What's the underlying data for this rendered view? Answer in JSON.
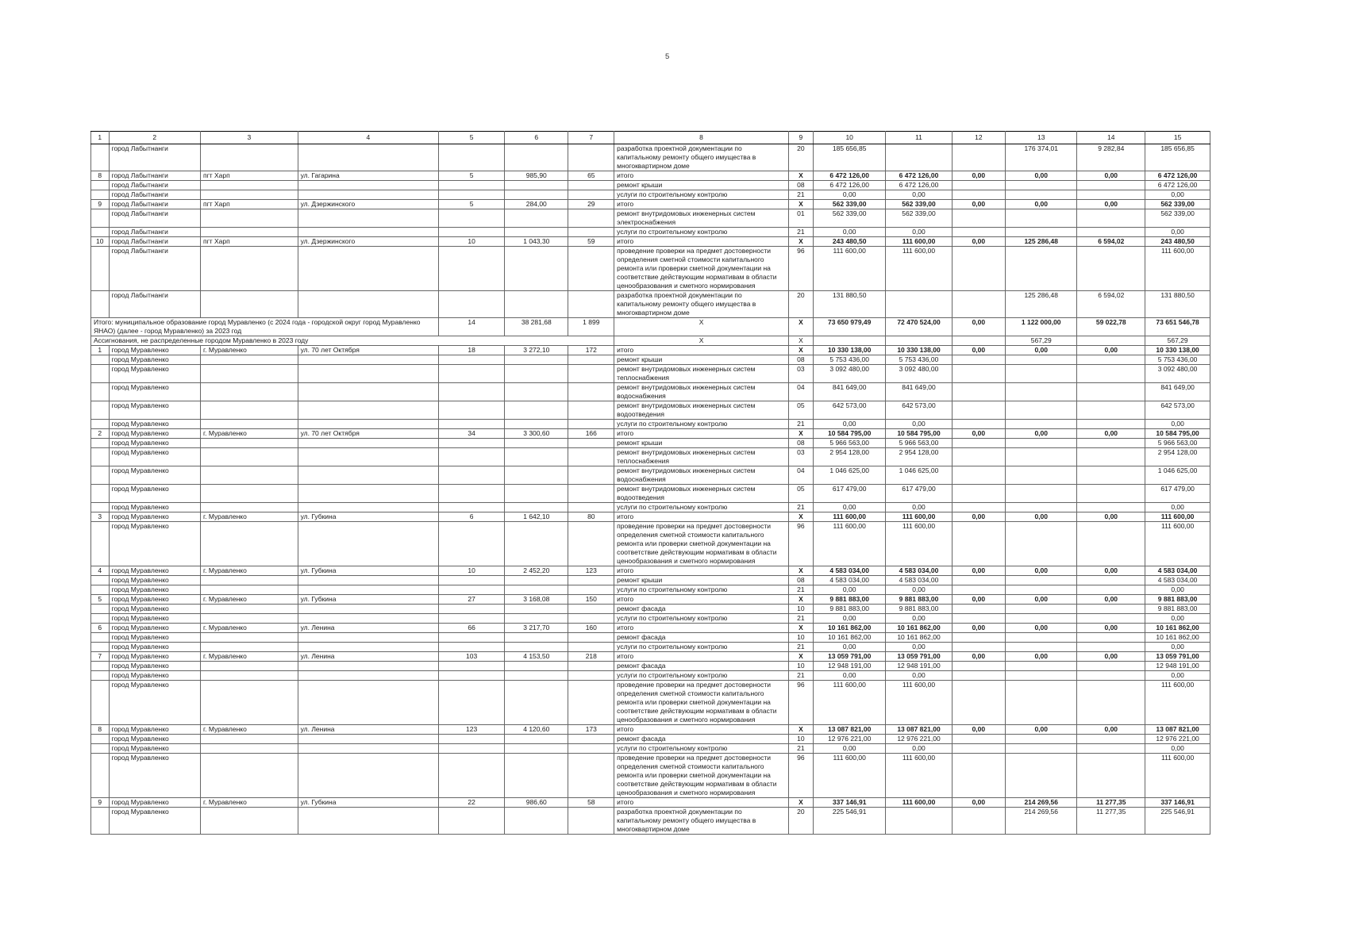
{
  "page": {
    "number": "5"
  },
  "colors": {
    "background": "#ffffff",
    "grid": "#666666",
    "grid_strong": "#000000",
    "text": "#1a1a1a"
  },
  "table": {
    "header": [
      "1",
      "2",
      "3",
      "4",
      "5",
      "6",
      "7",
      "8",
      "9",
      "10",
      "11",
      "12",
      "13",
      "14",
      "15"
    ],
    "rows": [
      {
        "c": [
          "",
          "город Лабытнанги",
          "",
          "",
          "",
          "",
          "",
          "разработка проектной документации по капитальному ремонту общего имущества в многоквартирном доме",
          "20",
          "185 656,85",
          "",
          "",
          "176 374,01",
          "9 282,84",
          "185 656,85"
        ]
      },
      {
        "t": 1,
        "b": 1,
        "c": [
          "8",
          "город Лабытнанги",
          "пгт Харп",
          "ул. Гагарина",
          "5",
          "985,90",
          "65",
          "итого",
          "X",
          "6 472 126,00",
          "6 472 126,00",
          "0,00",
          "0,00",
          "0,00",
          "6 472 126,00"
        ]
      },
      {
        "c": [
          "",
          "город Лабытнанги",
          "",
          "",
          "",
          "",
          "",
          "ремонт крыши",
          "08",
          "6 472 126,00",
          "6 472 126,00",
          "",
          "",
          "",
          "6 472 126,00"
        ]
      },
      {
        "c": [
          "",
          "город Лабытнанги",
          "",
          "",
          "",
          "",
          "",
          "услуги по строительному контролю",
          "21",
          "0,00",
          "0,00",
          "",
          "",
          "",
          "0,00"
        ]
      },
      {
        "t": 1,
        "b": 1,
        "c": [
          "9",
          "город Лабытнанги",
          "пгт Харп",
          "ул. Дзержинского",
          "5",
          "284,00",
          "29",
          "итого",
          "X",
          "562 339,00",
          "562 339,00",
          "0,00",
          "0,00",
          "0,00",
          "562 339,00"
        ]
      },
      {
        "c": [
          "",
          "город Лабытнанги",
          "",
          "",
          "",
          "",
          "",
          "ремонт внутридомовых инженерных систем электроснабжения",
          "01",
          "562 339,00",
          "562 339,00",
          "",
          "",
          "",
          "562 339,00"
        ]
      },
      {
        "c": [
          "",
          "город Лабытнанги",
          "",
          "",
          "",
          "",
          "",
          "услуги по строительному контролю",
          "21",
          "0,00",
          "0,00",
          "",
          "",
          "",
          "0,00"
        ]
      },
      {
        "t": 1,
        "b": 1,
        "c": [
          "10",
          "город Лабытнанги",
          "пгт Харп",
          "ул. Дзержинского",
          "10",
          "1 043,30",
          "59",
          "итого",
          "X",
          "243 480,50",
          "111 600,00",
          "0,00",
          "125 286,48",
          "6 594,02",
          "243 480,50"
        ]
      },
      {
        "c": [
          "",
          "город Лабытнанги",
          "",
          "",
          "",
          "",
          "",
          "проведение проверки на предмет достоверности определения сметной стоимости капитального ремонта или проверки сметной документации на соответствие действующим нормативам в области ценообразования и сметного нормирования",
          "96",
          "111 600,00",
          "111 600,00",
          "",
          "",
          "",
          "111 600,00"
        ]
      },
      {
        "c": [
          "",
          "город Лабытнанги",
          "",
          "",
          "",
          "",
          "",
          "разработка проектной документации по капитальному ремонту общего имущества в многоквартирном доме",
          "20",
          "131 880,50",
          "",
          "",
          "125 286,48",
          "6 594,02",
          "131 880,50"
        ]
      },
      {
        "t": 1,
        "b": 1,
        "c": [
          [
            "Итого: муниципальное образование город Муравленко (с 2024 года - городской округ город Муравленко ЯНАО) (далее - город Муравленко) за 2023 год",
            4
          ],
          "14",
          "38 281,68",
          "1 899",
          "X",
          "X",
          "73 650 979,49",
          "72 470 524,00",
          "0,00",
          "1 122 000,00",
          "59 022,78",
          "73 651 546,78"
        ]
      },
      {
        "c": [
          [
            "Ассигнования, не распределенные городом Муравленко в 2023 году",
            7
          ],
          "X",
          "X",
          "",
          "",
          "",
          "567,29",
          "",
          "567,29"
        ]
      },
      {
        "t": 1,
        "b": 1,
        "c": [
          "1",
          "город Муравленко",
          "г. Муравленко",
          "ул. 70 лет Октября",
          "18",
          "3 272,10",
          "172",
          "итого",
          "X",
          "10 330 138,00",
          "10 330 138,00",
          "0,00",
          "0,00",
          "0,00",
          "10 330 138,00"
        ]
      },
      {
        "c": [
          "",
          "город Муравленко",
          "",
          "",
          "",
          "",
          "",
          "ремонт крыши",
          "08",
          "5 753 436,00",
          "5 753 436,00",
          "",
          "",
          "",
          "5 753 436,00"
        ]
      },
      {
        "c": [
          "",
          "город Муравленко",
          "",
          "",
          "",
          "",
          "",
          "ремонт внутридомовых инженерных систем теплоснабжения",
          "03",
          "3 092 480,00",
          "3 092 480,00",
          "",
          "",
          "",
          "3 092 480,00"
        ]
      },
      {
        "c": [
          "",
          "город Муравленко",
          "",
          "",
          "",
          "",
          "",
          "ремонт внутридомовых инженерных систем водоснабжения",
          "04",
          "841 649,00",
          "841 649,00",
          "",
          "",
          "",
          "841 649,00"
        ]
      },
      {
        "c": [
          "",
          "город Муравленко",
          "",
          "",
          "",
          "",
          "",
          "ремонт внутридомовых инженерных систем водоотведения",
          "05",
          "642 573,00",
          "642 573,00",
          "",
          "",
          "",
          "642 573,00"
        ]
      },
      {
        "c": [
          "",
          "город Муравленко",
          "",
          "",
          "",
          "",
          "",
          "услуги по строительному контролю",
          "21",
          "0,00",
          "0,00",
          "",
          "",
          "",
          "0,00"
        ]
      },
      {
        "t": 1,
        "b": 1,
        "c": [
          "2",
          "город Муравленко",
          "г. Муравленко",
          "ул. 70 лет Октября",
          "34",
          "3 300,60",
          "166",
          "итого",
          "X",
          "10 584 795,00",
          "10 584 795,00",
          "0,00",
          "0,00",
          "0,00",
          "10 584 795,00"
        ]
      },
      {
        "c": [
          "",
          "город Муравленко",
          "",
          "",
          "",
          "",
          "",
          "ремонт крыши",
          "08",
          "5 966 563,00",
          "5 966 563,00",
          "",
          "",
          "",
          "5 966 563,00"
        ]
      },
      {
        "c": [
          "",
          "город Муравленко",
          "",
          "",
          "",
          "",
          "",
          "ремонт внутридомовых инженерных систем теплоснабжения",
          "03",
          "2 954 128,00",
          "2 954 128,00",
          "",
          "",
          "",
          "2 954 128,00"
        ]
      },
      {
        "c": [
          "",
          "город Муравленко",
          "",
          "",
          "",
          "",
          "",
          "ремонт внутридомовых инженерных систем водоснабжения",
          "04",
          "1 046 625,00",
          "1 046 625,00",
          "",
          "",
          "",
          "1 046 625,00"
        ]
      },
      {
        "c": [
          "",
          "город Муравленко",
          "",
          "",
          "",
          "",
          "",
          "ремонт внутридомовых инженерных систем водоотведения",
          "05",
          "617 479,00",
          "617 479,00",
          "",
          "",
          "",
          "617 479,00"
        ]
      },
      {
        "c": [
          "",
          "город Муравленко",
          "",
          "",
          "",
          "",
          "",
          "услуги по строительному контролю",
          "21",
          "0,00",
          "0,00",
          "",
          "",
          "",
          "0,00"
        ]
      },
      {
        "t": 1,
        "b": 1,
        "c": [
          "3",
          "город Муравленко",
          "г. Муравленко",
          "ул. Губкина",
          "6",
          "1 642,10",
          "80",
          "итого",
          "X",
          "111 600,00",
          "111 600,00",
          "0,00",
          "0,00",
          "0,00",
          "111 600,00"
        ]
      },
      {
        "c": [
          "",
          "город Муравленко",
          "",
          "",
          "",
          "",
          "",
          "проведение проверки на предмет достоверности определения сметной стоимости капитального ремонта или проверки сметной документации на соответствие действующим нормативам в области ценообразования и сметного нормирования",
          "96",
          "111 600,00",
          "111 600,00",
          "",
          "",
          "",
          "111 600,00"
        ]
      },
      {
        "t": 1,
        "b": 1,
        "c": [
          "4",
          "город Муравленко",
          "г. Муравленко",
          "ул. Губкина",
          "10",
          "2 452,20",
          "123",
          "итого",
          "X",
          "4 583 034,00",
          "4 583 034,00",
          "0,00",
          "0,00",
          "0,00",
          "4 583 034,00"
        ]
      },
      {
        "c": [
          "",
          "город Муравленко",
          "",
          "",
          "",
          "",
          "",
          "ремонт крыши",
          "08",
          "4 583 034,00",
          "4 583 034,00",
          "",
          "",
          "",
          "4 583 034,00"
        ]
      },
      {
        "c": [
          "",
          "город Муравленко",
          "",
          "",
          "",
          "",
          "",
          "услуги по строительному контролю",
          "21",
          "0,00",
          "0,00",
          "",
          "",
          "",
          "0,00"
        ]
      },
      {
        "t": 1,
        "b": 1,
        "c": [
          "5",
          "город Муравленко",
          "г. Муравленко",
          "ул. Губкина",
          "27",
          "3 168,08",
          "150",
          "итого",
          "X",
          "9 881 883,00",
          "9 881 883,00",
          "0,00",
          "0,00",
          "0,00",
          "9 881 883,00"
        ]
      },
      {
        "c": [
          "",
          "город Муравленко",
          "",
          "",
          "",
          "",
          "",
          "ремонт фасада",
          "10",
          "9 881 883,00",
          "9 881 883,00",
          "",
          "",
          "",
          "9 881 883,00"
        ]
      },
      {
        "c": [
          "",
          "город Муравленко",
          "",
          "",
          "",
          "",
          "",
          "услуги по строительному контролю",
          "21",
          "0,00",
          "0,00",
          "",
          "",
          "",
          "0,00"
        ]
      },
      {
        "t": 1,
        "b": 1,
        "c": [
          "6",
          "город Муравленко",
          "г. Муравленко",
          "ул. Ленина",
          "66",
          "3 217,70",
          "160",
          "итого",
          "X",
          "10 161 862,00",
          "10 161 862,00",
          "0,00",
          "0,00",
          "0,00",
          "10 161 862,00"
        ]
      },
      {
        "c": [
          "",
          "город Муравленко",
          "",
          "",
          "",
          "",
          "",
          "ремонт фасада",
          "10",
          "10 161 862,00",
          "10 161 862,00",
          "",
          "",
          "",
          "10 161 862,00"
        ]
      },
      {
        "c": [
          "",
          "город Муравленко",
          "",
          "",
          "",
          "",
          "",
          "услуги по строительному контролю",
          "21",
          "0,00",
          "0,00",
          "",
          "",
          "",
          "0,00"
        ]
      },
      {
        "t": 1,
        "b": 1,
        "c": [
          "7",
          "город Муравленко",
          "г. Муравленко",
          "ул. Ленина",
          "103",
          "4 153,50",
          "218",
          "итого",
          "X",
          "13 059 791,00",
          "13 059 791,00",
          "0,00",
          "0,00",
          "0,00",
          "13 059 791,00"
        ]
      },
      {
        "c": [
          "",
          "город Муравленко",
          "",
          "",
          "",
          "",
          "",
          "ремонт фасада",
          "10",
          "12 948 191,00",
          "12 948 191,00",
          "",
          "",
          "",
          "12 948 191,00"
        ]
      },
      {
        "c": [
          "",
          "город Муравленко",
          "",
          "",
          "",
          "",
          "",
          "услуги по строительному контролю",
          "21",
          "0,00",
          "0,00",
          "",
          "",
          "",
          "0,00"
        ]
      },
      {
        "c": [
          "",
          "город Муравленко",
          "",
          "",
          "",
          "",
          "",
          "проведение проверки на предмет достоверности определения сметной стоимости капитального ремонта или проверки сметной документации на соответствие действующим нормативам в области ценообразования и сметного нормирования",
          "96",
          "111 600,00",
          "111 600,00",
          "",
          "",
          "",
          "111 600,00"
        ]
      },
      {
        "t": 1,
        "b": 1,
        "c": [
          "8",
          "город Муравленко",
          "г. Муравленко",
          "ул. Ленина",
          "123",
          "4 120,60",
          "173",
          "итого",
          "X",
          "13 087 821,00",
          "13 087 821,00",
          "0,00",
          "0,00",
          "0,00",
          "13 087 821,00"
        ]
      },
      {
        "c": [
          "",
          "город Муравленко",
          "",
          "",
          "",
          "",
          "",
          "ремонт фасада",
          "10",
          "12 976 221,00",
          "12 976 221,00",
          "",
          "",
          "",
          "12 976 221,00"
        ]
      },
      {
        "c": [
          "",
          "город Муравленко",
          "",
          "",
          "",
          "",
          "",
          "услуги по строительному контролю",
          "21",
          "0,00",
          "0,00",
          "",
          "",
          "",
          "0,00"
        ]
      },
      {
        "c": [
          "",
          "город Муравленко",
          "",
          "",
          "",
          "",
          "",
          "проведение проверки на предмет достоверности определения сметной стоимости капитального ремонта или проверки сметной документации на соответствие действующим нормативам в области ценообразования и сметного нормирования",
          "96",
          "111 600,00",
          "111 600,00",
          "",
          "",
          "",
          "111 600,00"
        ]
      },
      {
        "t": 1,
        "b": 1,
        "c": [
          "9",
          "город Муравленко",
          "г. Муравленко",
          "ул. Губкина",
          "22",
          "986,60",
          "58",
          "итого",
          "X",
          "337 146,91",
          "111 600,00",
          "0,00",
          "214 269,56",
          "11 277,35",
          "337 146,91"
        ]
      },
      {
        "c": [
          "",
          "город Муравленко",
          "",
          "",
          "",
          "",
          "",
          "разработка проектной документации по капитальному ремонту общего имущества в многоквартирном доме",
          "20",
          "225 546,91",
          "",
          "",
          "214 269,56",
          "11 277,35",
          "225 546,91"
        ]
      }
    ]
  }
}
